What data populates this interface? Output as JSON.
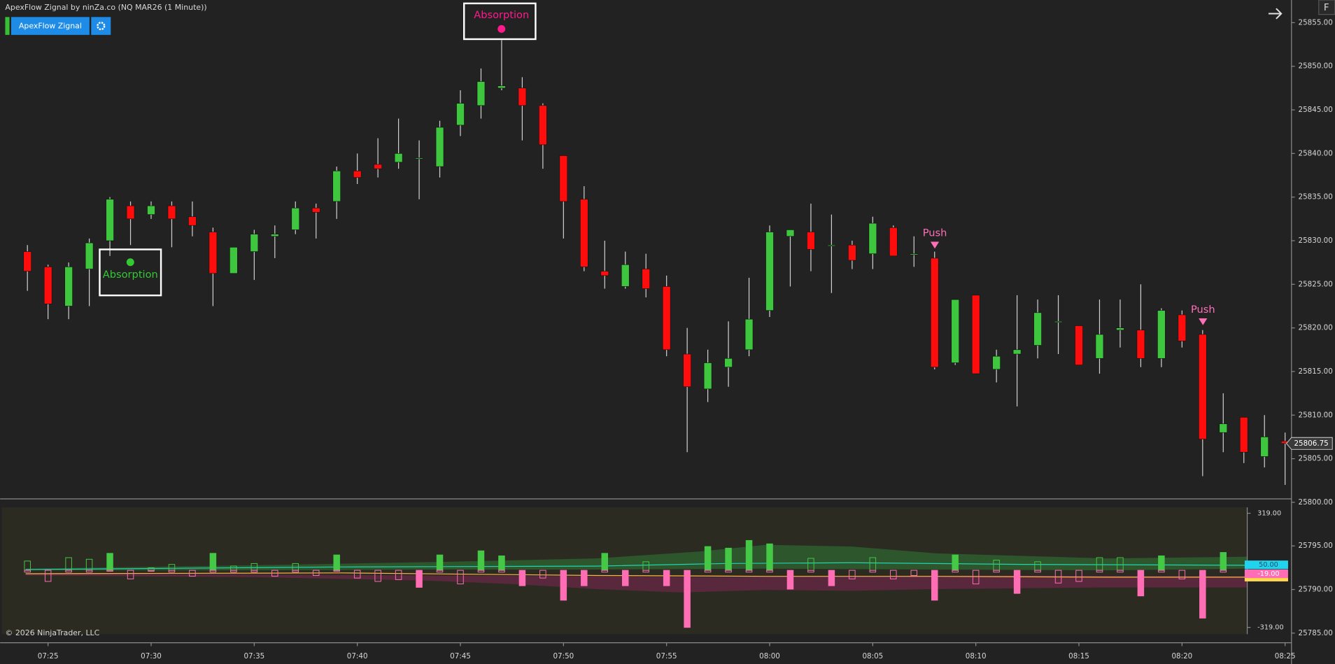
{
  "chart_data": [
    {
      "type": "candlestick",
      "title": "ApexFlow Zignal by ninZa.co (NQ MAR26 (1 Minute))",
      "categories": [
        null,
        "07:25",
        null,
        null,
        null,
        null,
        "07:30",
        null,
        null,
        null,
        null,
        "07:35",
        null,
        null,
        null,
        null,
        "07:40",
        null,
        null,
        null,
        null,
        "07:45",
        null,
        null,
        null,
        null,
        "07:50",
        null,
        null,
        null,
        null,
        "07:55",
        null,
        null,
        null,
        null,
        "08:00",
        null,
        null,
        null,
        null,
        "08:05",
        null,
        null,
        null,
        null,
        "08:10",
        null,
        null,
        null,
        null,
        "08:15",
        null,
        null,
        null,
        null,
        "08:20",
        null,
        null,
        null,
        null,
        "08:25"
      ],
      "open": [
        25828.75,
        25827,
        25822.5,
        25826.75,
        25830,
        25834,
        25833,
        25834,
        25832.75,
        25831,
        25826.25,
        25828.75,
        25830.5,
        25831.25,
        25833.75,
        25834.5,
        25838,
        25838.75,
        25839,
        25839.5,
        25838.5,
        25843.25,
        25845.5,
        25847.5,
        25847.5,
        25845.5,
        25839.75,
        25834.75,
        25826.5,
        25824.75,
        25826.75,
        25824.75,
        25817,
        25813,
        25815.5,
        25817.5,
        25822,
        25830.5,
        25831,
        25829.5,
        25829.5,
        25828.5,
        25831.5,
        25828.5,
        25828,
        25816,
        25823.75,
        25815.25,
        25817,
        25818,
        25820.75,
        25820.25,
        25816.5,
        25819.75,
        25819.75,
        25816.5,
        25821.5,
        25819.25,
        25808,
        25809.75,
        25805.25,
        25807
      ],
      "high": [
        25829.5,
        25827.25,
        25827.5,
        25830.25,
        25835,
        25834.5,
        25834.5,
        25834.5,
        25834.5,
        25831.5,
        25829.25,
        25831.25,
        25831.75,
        25834.5,
        25834.25,
        25838.5,
        25840,
        25841.75,
        25844,
        25841.5,
        25843.75,
        25847.25,
        25849.75,
        25853,
        25848.75,
        25845.75,
        25839.75,
        25836.25,
        25830,
        25828.75,
        25828.5,
        25826,
        25820,
        25817.5,
        25820.75,
        25825.75,
        25831.75,
        25831.25,
        25834.25,
        25833,
        25830,
        25832.75,
        25831.75,
        25830.5,
        25828.75,
        25823.25,
        25823.75,
        25817.5,
        25823.75,
        25823.25,
        25823.75,
        25820.25,
        25823.25,
        25823.25,
        25825,
        25822.25,
        25822,
        25819.75,
        25812.5,
        25809.75,
        25810,
        25808
      ],
      "low": [
        25824.25,
        25821,
        25821,
        25822.5,
        25828.25,
        25829.5,
        25832.5,
        25829.25,
        25830.5,
        25822.5,
        25826.25,
        25825.5,
        25828,
        25830.75,
        25830.25,
        25832.5,
        25836.5,
        25837.25,
        25838.25,
        25834.75,
        25837.25,
        25842,
        25844,
        25847.25,
        25841.5,
        25838.25,
        25830.25,
        25826.5,
        25824.5,
        25824.5,
        25823.5,
        25816.75,
        25805.75,
        25811.5,
        25813.25,
        25816.75,
        25821.25,
        25824.75,
        25826.5,
        25824,
        25826.75,
        25826.75,
        25828.25,
        25827,
        25815.25,
        25815.75,
        25814.75,
        25813.75,
        25811,
        25816.5,
        25817,
        25815.75,
        25814.75,
        25817.75,
        25815.5,
        25815.5,
        25817.75,
        25803,
        25805.75,
        25804.5,
        25804,
        25802
      ],
      "close": [
        25826.5,
        25822.75,
        25827,
        25829.75,
        25834.75,
        25832.5,
        25834,
        25832.5,
        25831.75,
        25826.25,
        25829.25,
        25830.75,
        25830.75,
        25833.75,
        25833.25,
        25838,
        25837.25,
        25838.25,
        25840,
        25839.5,
        25843,
        25845.75,
        25848.25,
        25847.75,
        25845.5,
        25841,
        25834.5,
        25827,
        25826,
        25827.25,
        25824.5,
        25817.5,
        25813.25,
        25816,
        25816.5,
        25821,
        25831,
        25831.25,
        25829,
        25829.5,
        25827.75,
        25832,
        25828.25,
        25828.5,
        25815.5,
        25823.25,
        25814.75,
        25816.75,
        25817.5,
        25821.75,
        25820.75,
        25815.75,
        25819.25,
        25820,
        25816.5,
        25822,
        25818.5,
        25807.25,
        25809,
        25805.75,
        25807.5,
        25806.75
      ],
      "up_color": "#3fc63f",
      "down_color": "#ff0d0d",
      "ylim": [
        25783.9,
        25857.6
      ],
      "yticks": [
        {
          "value": 25855,
          "label": "25855.00"
        },
        {
          "value": 25850,
          "label": "25850.00"
        },
        {
          "value": 25845,
          "label": "25845.00"
        },
        {
          "value": 25840,
          "label": "25840.00"
        },
        {
          "value": 25835,
          "label": "25835.00"
        },
        {
          "value": 25830,
          "label": "25830.00"
        },
        {
          "value": 25825,
          "label": "25825.00"
        },
        {
          "value": 25820,
          "label": "25820.00"
        },
        {
          "value": 25815,
          "label": "25815.00"
        },
        {
          "value": 25810,
          "label": "25810.00"
        },
        {
          "value": 25805,
          "label": "25805.00"
        },
        {
          "value": 25800,
          "label": "25800.00"
        },
        {
          "value": 25795,
          "label": "25795.00"
        },
        {
          "value": 25790,
          "label": "25790.00"
        },
        {
          "value": 25785,
          "label": "25785.00"
        }
      ],
      "last_price": 25806.75,
      "annotations": [
        {
          "text": "Absorption",
          "color": "#33c933"
        },
        {
          "text": "Absorption",
          "color": "#ff1a8c"
        },
        {
          "text": "Push",
          "color": "#ff6fb8"
        },
        {
          "text": "Push",
          "color": "#ff6fb8"
        }
      ]
    },
    {
      "type": "bar",
      "series": [
        {
          "color": "#45c845",
          "values": [
            52,
            0,
            71,
            62,
            95,
            0,
            14,
            33,
            0,
            95,
            24,
            38,
            0,
            38,
            0,
            86,
            0,
            0,
            0,
            0,
            86,
            0,
            109,
            81,
            0,
            0,
            0,
            0,
            95,
            0,
            48,
            0,
            0,
            133,
            124,
            167,
            148,
            0,
            67,
            0,
            0,
            71,
            0,
            0,
            0,
            86,
            0,
            57,
            0,
            48,
            0,
            0,
            71,
            71,
            0,
            81,
            0,
            0,
            100
          ]
        },
        {
          "color": "#ff6eb4",
          "values": [
            -10,
            -62,
            -10,
            -10,
            -5,
            -48,
            -5,
            -10,
            -33,
            -10,
            -10,
            -10,
            -33,
            -10,
            -29,
            -5,
            -43,
            -62,
            -52,
            -95,
            -10,
            -76,
            -10,
            -10,
            -86,
            -43,
            -167,
            -86,
            -10,
            -86,
            -10,
            -86,
            -319,
            -10,
            -10,
            -10,
            -10,
            -105,
            -10,
            -86,
            -48,
            -10,
            -48,
            -29,
            -167,
            -10,
            -76,
            -10,
            -129,
            -10,
            -71,
            -62,
            -10,
            -10,
            -143,
            -10,
            -48,
            -267,
            -10
          ]
        }
      ],
      "ylim": [
        -357,
        352
      ],
      "yticks": [
        {
          "value": 319,
          "label": "319.00"
        },
        {
          "value": -319,
          "label": "-319.00"
        }
      ],
      "last_values": [
        50,
        -19
      ],
      "last_value_labels": [
        "50.00",
        "-19.00"
      ],
      "last_value_colors": [
        "#22d3ee",
        "#ffd84d"
      ]
    }
  ],
  "ui": {
    "button": "ApexFlow Zignal",
    "copyright": "© 2026 NinjaTrader, LLC",
    "corner": "F"
  }
}
